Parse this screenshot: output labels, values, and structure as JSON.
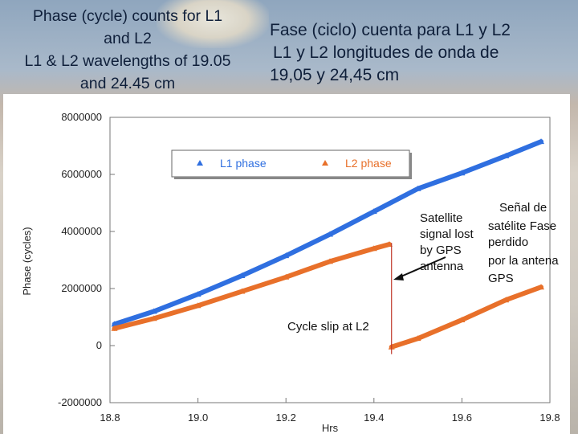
{
  "slide": {
    "title_en_line1": "Phase (cycle) counts for L1",
    "title_en_line2": "and L2",
    "title_en_line3": "L1 & L2 wavelengths of 19.05",
    "title_en_line4": "and 24.45 cm",
    "title_es_line1": "Fase (ciclo) cuenta para L1 y L2",
    "title_es_line2": "L1 y L2 longitudes de onda de",
    "title_es_line3": "19,05 y 24,45 cm"
  },
  "chart_data": {
    "type": "scatter",
    "xlabel": "Hrs",
    "ylabel": "Phase (cycles)",
    "xlim": [
      18.8,
      19.8
    ],
    "ylim": [
      -2000000,
      8000000
    ],
    "x_ticks": [
      "18.8",
      "19.0",
      "19.2",
      "19.4",
      "19.6",
      "19.8"
    ],
    "y_ticks": [
      "8000000",
      "6000000",
      "4000000",
      "2000000",
      "0",
      "-2000000"
    ],
    "grid": false,
    "legend_placement": "top-center",
    "series": [
      {
        "name": "L1 phase",
        "color": "#2f6fe0",
        "x": [
          18.81,
          18.9,
          19.0,
          19.1,
          19.2,
          19.3,
          19.4,
          19.5,
          19.6,
          19.7,
          19.78
        ],
        "y": [
          750000,
          1200000,
          1800000,
          2450000,
          3150000,
          3900000,
          4700000,
          5500000,
          6050000,
          6650000,
          7150000
        ]
      },
      {
        "name": "L2 phase",
        "color": "#e8702a",
        "x": [
          18.81,
          18.9,
          19.0,
          19.1,
          19.2,
          19.3,
          19.4,
          19.435,
          19.44,
          19.5,
          19.6,
          19.7,
          19.78
        ],
        "y": [
          600000,
          950000,
          1400000,
          1900000,
          2400000,
          2950000,
          3400000,
          3550000,
          -50000,
          250000,
          900000,
          1600000,
          2050000
        ]
      }
    ],
    "annotations": {
      "cycle_slip": "Cycle slip at L2",
      "lost_en_1": "Satellite",
      "lost_en_2": "signal lost",
      "lost_en_3": "by GPS",
      "lost_en_4": "antenna",
      "lost_es_1": "Señal de",
      "lost_es_2": "satélite Fase",
      "lost_es_3": "perdido",
      "lost_es_4": "por la antena",
      "lost_es_5": "GPS"
    },
    "slip_x": 19.44
  }
}
